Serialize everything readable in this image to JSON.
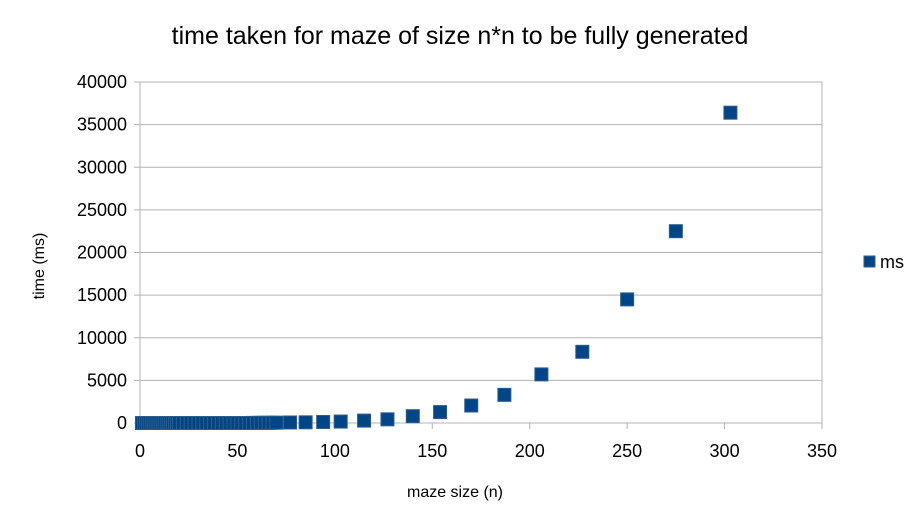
{
  "chart_data": {
    "type": "scatter",
    "title": "time taken for maze of size n*n to be fully generated",
    "xlabel": "maze size (n)",
    "ylabel": "time (ms)",
    "xlim": [
      0,
      350
    ],
    "ylim": [
      0,
      40000
    ],
    "xticks": [
      0,
      50,
      100,
      150,
      200,
      250,
      300,
      350
    ],
    "yticks": [
      0,
      5000,
      10000,
      15000,
      20000,
      25000,
      30000,
      35000,
      40000
    ],
    "grid": "horizontal",
    "legend_position": "right",
    "series": [
      {
        "name": "ms",
        "color": "#004586",
        "x": [
          1,
          2,
          3,
          4,
          5,
          6,
          7,
          8,
          9,
          10,
          11,
          12,
          13,
          14,
          15,
          16,
          17,
          18,
          19,
          20,
          22,
          24,
          26,
          28,
          30,
          32,
          34,
          36,
          38,
          40,
          42,
          44,
          46,
          48,
          50,
          52,
          54,
          56,
          58,
          60,
          62,
          64,
          66,
          68,
          70,
          77,
          85,
          94,
          103,
          115,
          127,
          140,
          154,
          170,
          187,
          206,
          227,
          250,
          275,
          303
        ],
        "y": [
          0,
          0,
          0,
          0,
          0,
          0,
          0,
          0,
          0,
          0,
          0,
          0,
          0,
          0,
          0,
          0,
          0,
          0,
          0,
          0,
          0,
          0,
          0,
          0,
          0,
          0,
          0,
          0,
          0,
          0,
          0,
          0,
          0,
          0,
          0,
          0,
          0,
          0,
          10,
          10,
          20,
          20,
          20,
          30,
          40,
          60,
          80,
          120,
          170,
          280,
          430,
          800,
          1280,
          2050,
          3300,
          5700,
          8350,
          14500,
          22500,
          36400
        ]
      }
    ]
  }
}
